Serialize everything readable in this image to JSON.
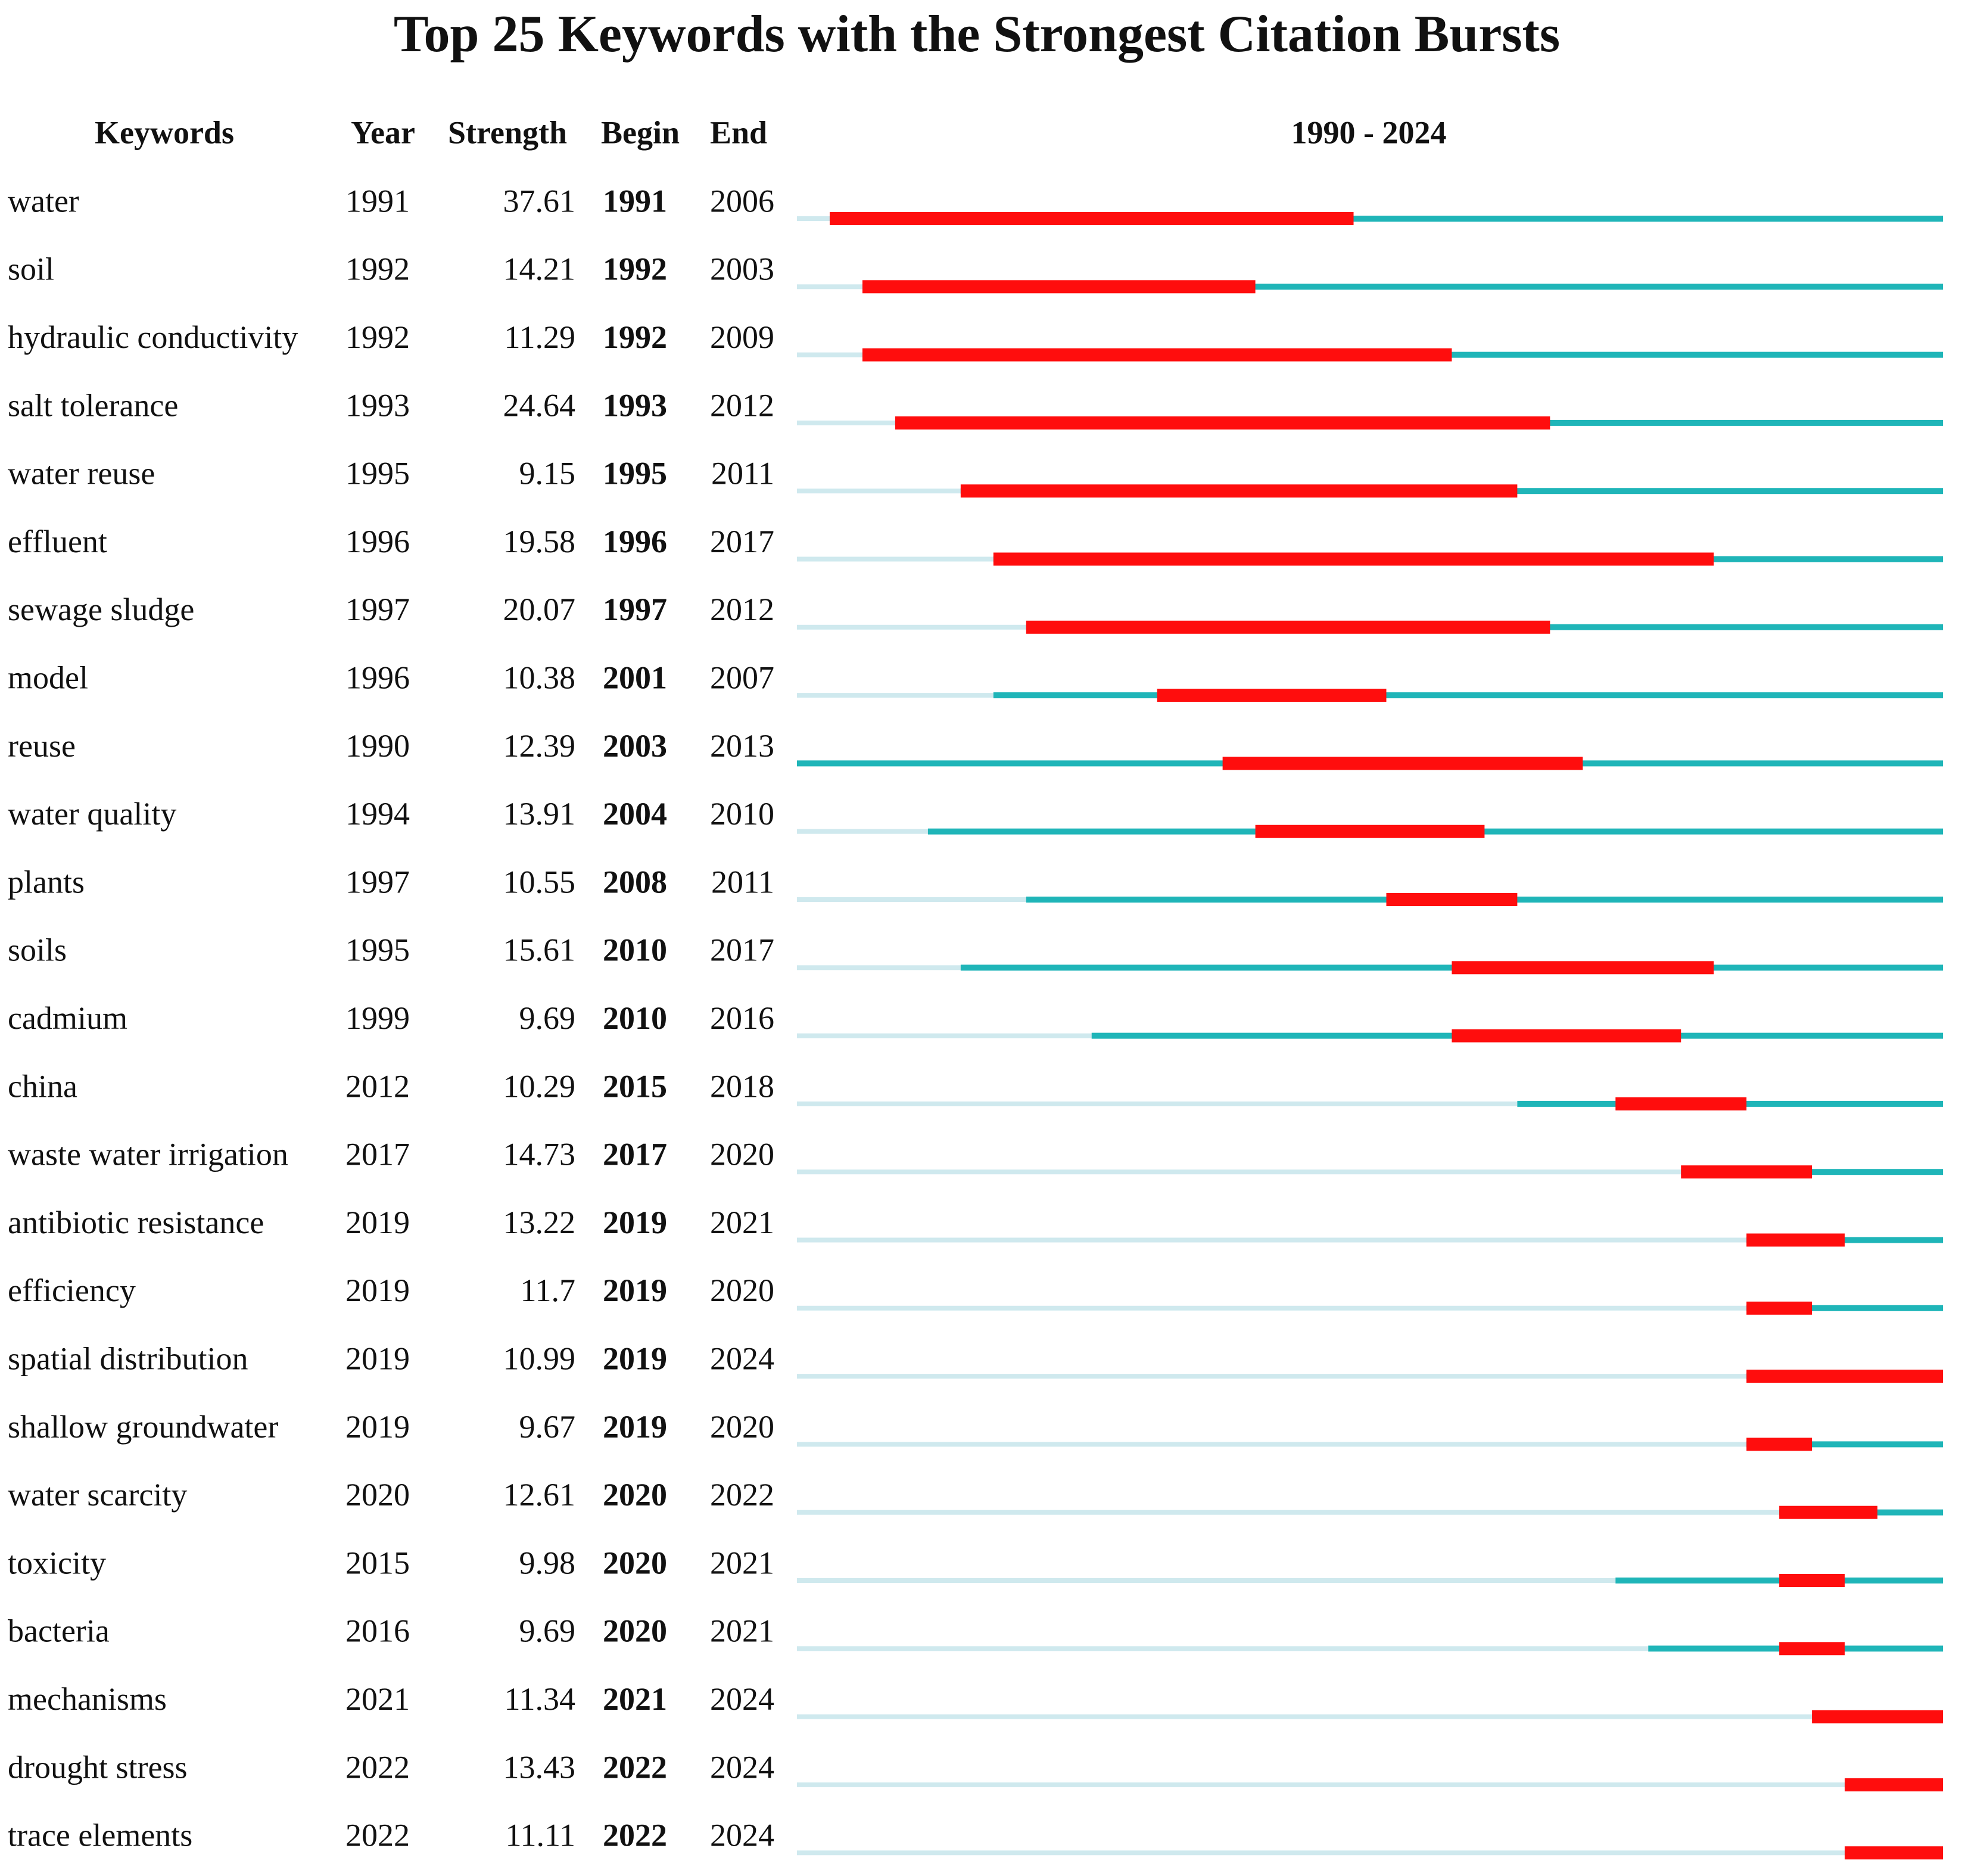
{
  "chart_data": {
    "type": "burst",
    "title": "Top 25 Keywords with the Strongest Citation Bursts",
    "columns": [
      "Keywords",
      "Year",
      "Strength",
      "Begin",
      "End"
    ],
    "range_label": "1990 - 2024",
    "xlim": [
      1990,
      2024
    ],
    "colors": {
      "before": "#cfe9ee",
      "active": "#1fb5b8",
      "burst": "#ff0d0d"
    },
    "rows": [
      {
        "keyword": "water",
        "year": 1991,
        "strength": 37.61,
        "begin": 1991,
        "end": 2006
      },
      {
        "keyword": "soil",
        "year": 1992,
        "strength": 14.21,
        "begin": 1992,
        "end": 2003
      },
      {
        "keyword": "hydraulic conductivity",
        "year": 1992,
        "strength": 11.29,
        "begin": 1992,
        "end": 2009
      },
      {
        "keyword": "salt tolerance",
        "year": 1993,
        "strength": 24.64,
        "begin": 1993,
        "end": 2012
      },
      {
        "keyword": "water reuse",
        "year": 1995,
        "strength": 9.15,
        "begin": 1995,
        "end": 2011
      },
      {
        "keyword": "effluent",
        "year": 1996,
        "strength": 19.58,
        "begin": 1996,
        "end": 2017
      },
      {
        "keyword": "sewage sludge",
        "year": 1997,
        "strength": 20.07,
        "begin": 1997,
        "end": 2012
      },
      {
        "keyword": "model",
        "year": 1996,
        "strength": 10.38,
        "begin": 2001,
        "end": 2007
      },
      {
        "keyword": "reuse",
        "year": 1990,
        "strength": 12.39,
        "begin": 2003,
        "end": 2013
      },
      {
        "keyword": "water quality",
        "year": 1994,
        "strength": 13.91,
        "begin": 2004,
        "end": 2010
      },
      {
        "keyword": "plants",
        "year": 1997,
        "strength": 10.55,
        "begin": 2008,
        "end": 2011
      },
      {
        "keyword": "soils",
        "year": 1995,
        "strength": 15.61,
        "begin": 2010,
        "end": 2017
      },
      {
        "keyword": "cadmium",
        "year": 1999,
        "strength": 9.69,
        "begin": 2010,
        "end": 2016
      },
      {
        "keyword": "china",
        "year": 2012,
        "strength": 10.29,
        "begin": 2015,
        "end": 2018
      },
      {
        "keyword": "waste water irrigation",
        "year": 2017,
        "strength": 14.73,
        "begin": 2017,
        "end": 2020
      },
      {
        "keyword": "antibiotic resistance",
        "year": 2019,
        "strength": 13.22,
        "begin": 2019,
        "end": 2021
      },
      {
        "keyword": "efficiency",
        "year": 2019,
        "strength": 11.7,
        "begin": 2019,
        "end": 2020
      },
      {
        "keyword": "spatial distribution",
        "year": 2019,
        "strength": 10.99,
        "begin": 2019,
        "end": 2024
      },
      {
        "keyword": "shallow groundwater",
        "year": 2019,
        "strength": 9.67,
        "begin": 2019,
        "end": 2020
      },
      {
        "keyword": "water scarcity",
        "year": 2020,
        "strength": 12.61,
        "begin": 2020,
        "end": 2022
      },
      {
        "keyword": "toxicity",
        "year": 2015,
        "strength": 9.98,
        "begin": 2020,
        "end": 2021
      },
      {
        "keyword": "bacteria",
        "year": 2016,
        "strength": 9.69,
        "begin": 2020,
        "end": 2021
      },
      {
        "keyword": "mechanisms",
        "year": 2021,
        "strength": 11.34,
        "begin": 2021,
        "end": 2024
      },
      {
        "keyword": "drought stress",
        "year": 2022,
        "strength": 13.43,
        "begin": 2022,
        "end": 2024
      },
      {
        "keyword": "trace elements",
        "year": 2022,
        "strength": 11.11,
        "begin": 2022,
        "end": 2024
      }
    ]
  }
}
